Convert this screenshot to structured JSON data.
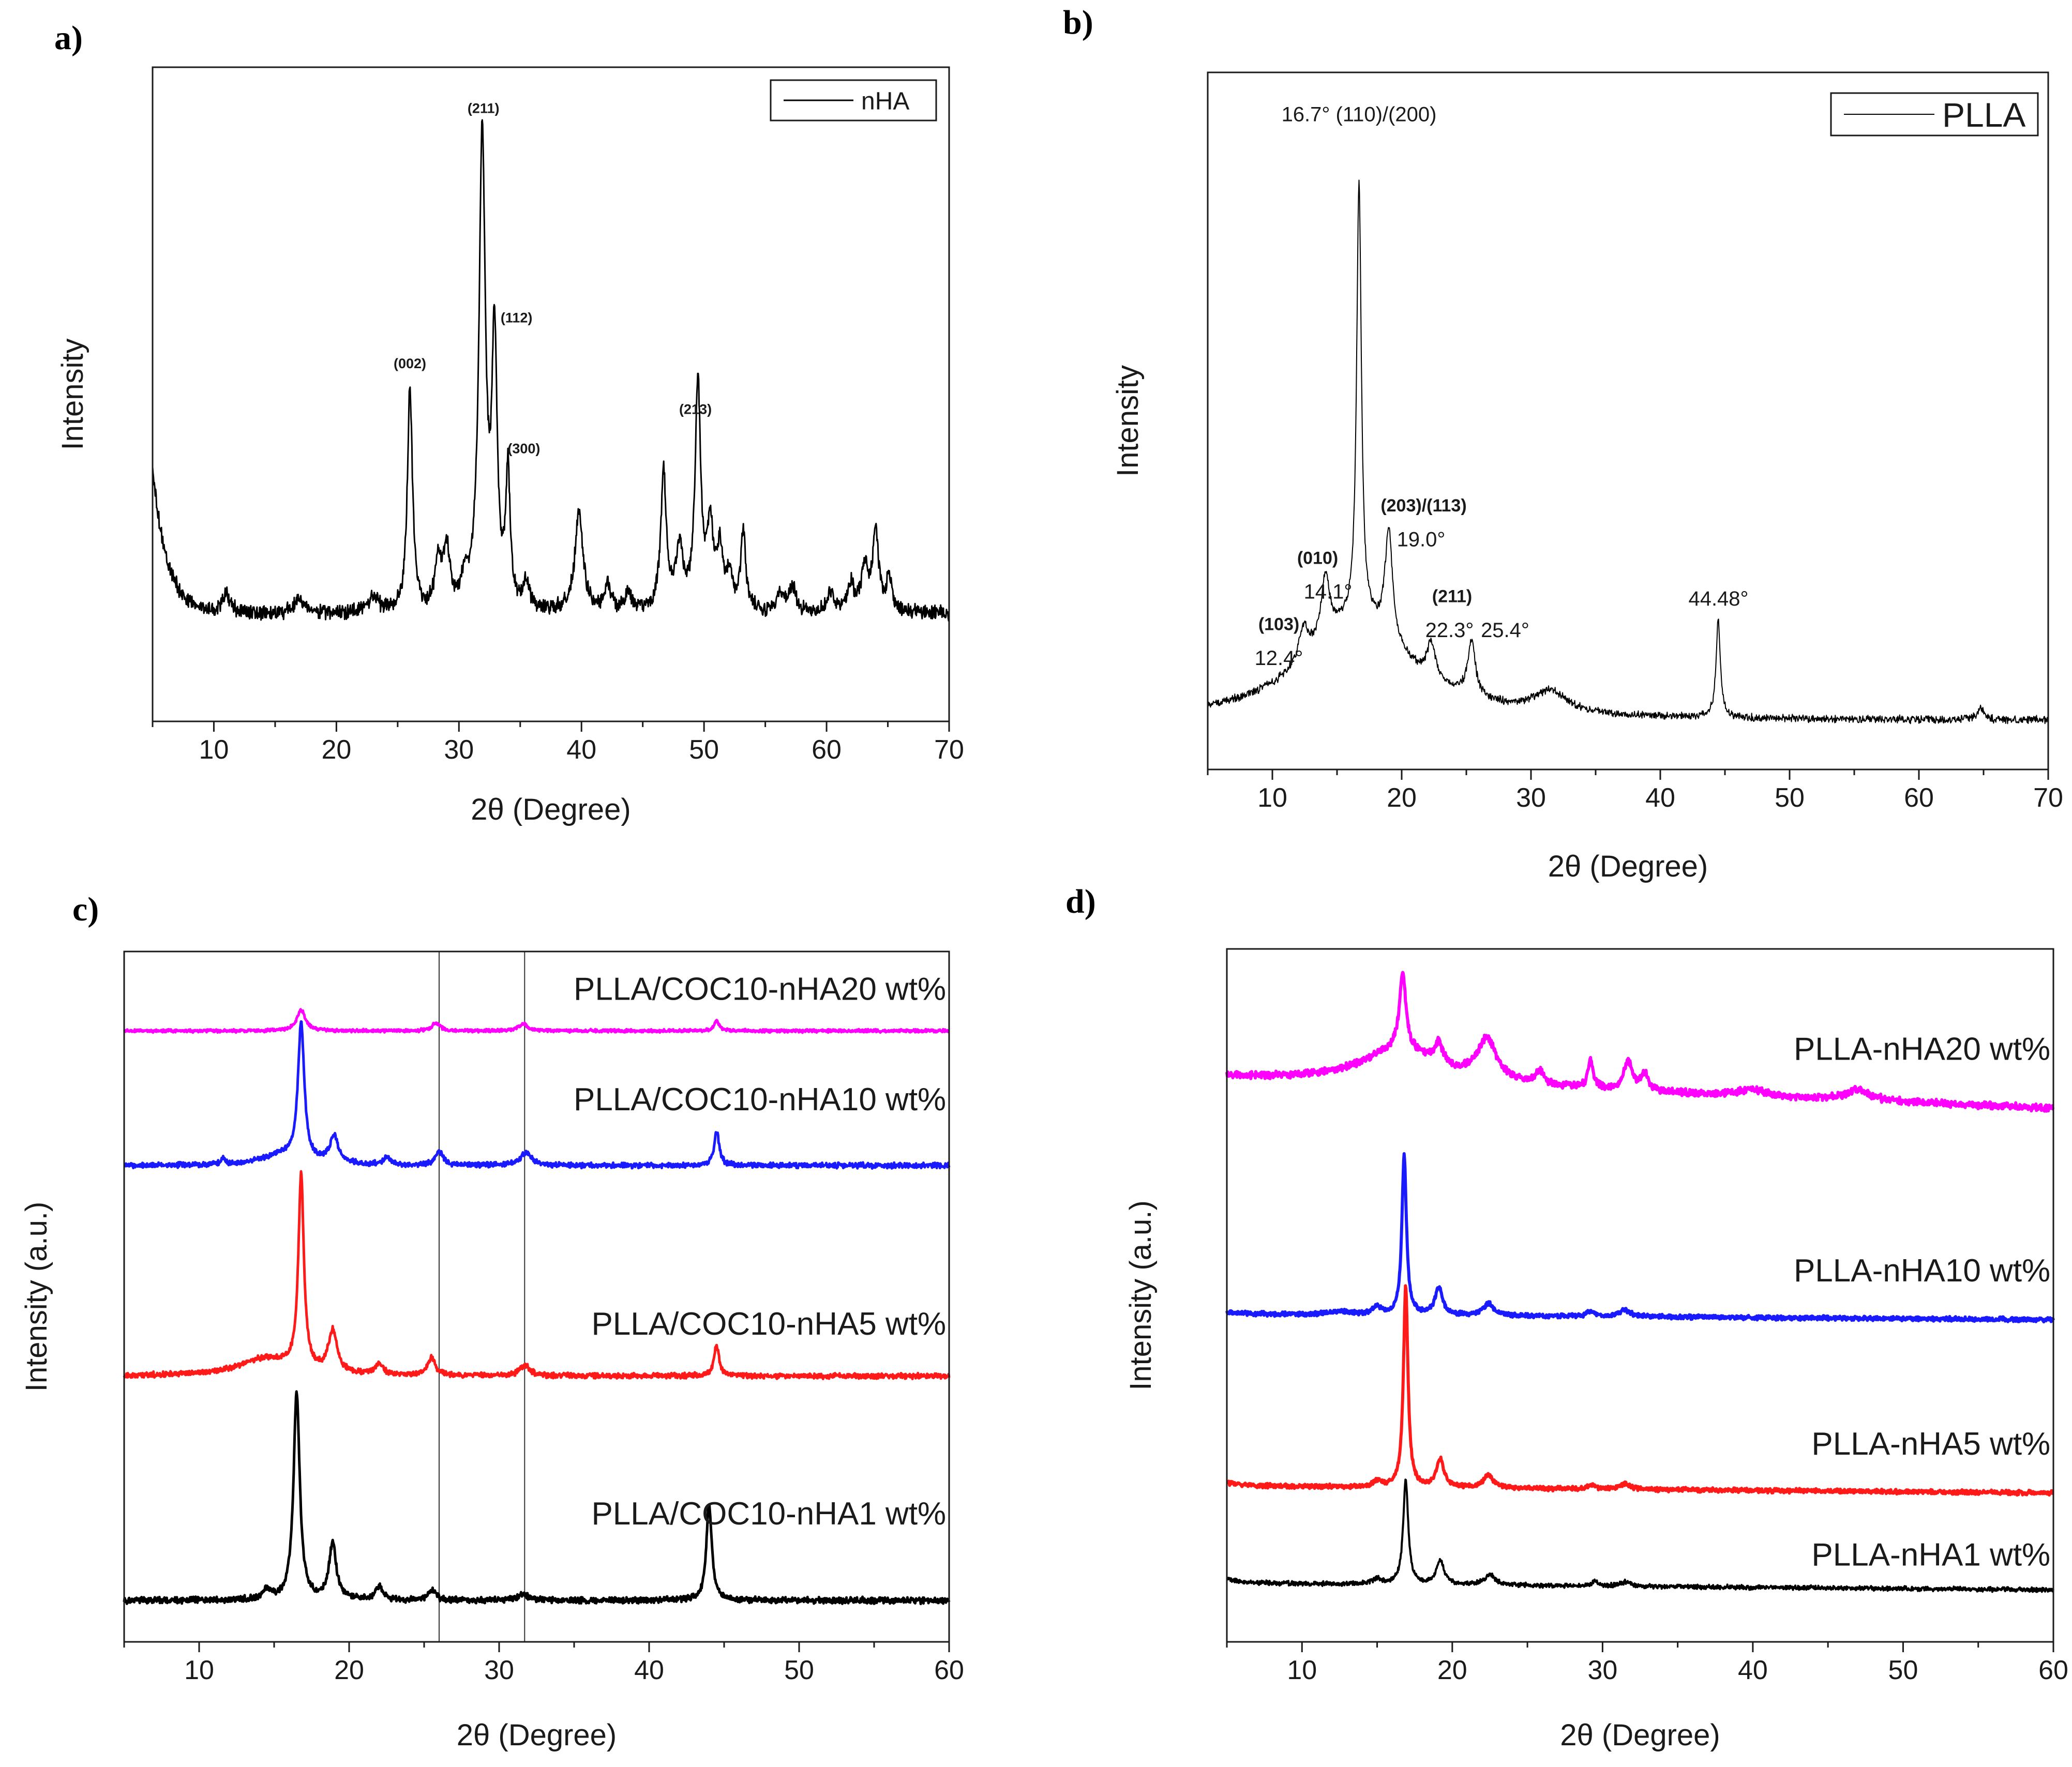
{
  "chart_data": [
    {
      "panel_label": "a)",
      "type": "line",
      "xlabel": "2θ (Degree)",
      "ylabel": "Intensity",
      "xlim": [
        5,
        70
      ],
      "ylim": [
        0,
        100
      ],
      "xticks": [
        10,
        20,
        30,
        40,
        50,
        60,
        70
      ],
      "legend": {
        "position": "top-right",
        "entries": [
          "nHA"
        ]
      },
      "series": [
        {
          "name": "nHA",
          "color": "#000000",
          "stroke": 3,
          "baseline": 16.5,
          "noise": 0.9,
          "start": 22,
          "tail": 0,
          "peaks": [
            [
              11,
              3,
              0.4
            ],
            [
              17,
              2.5,
              0.4
            ],
            [
              23,
              2.5,
              0.4
            ],
            [
              26,
              34,
              0.25
            ],
            [
              28.3,
              7,
              0.3
            ],
            [
              29,
              9,
              0.3
            ],
            [
              30.5,
              4,
              0.3
            ],
            [
              31.9,
              72,
              0.32
            ],
            [
              32.9,
              40,
              0.25
            ],
            [
              34,
              20,
              0.22
            ],
            [
              35.5,
              4,
              0.3
            ],
            [
              39.8,
              15,
              0.4
            ],
            [
              42.1,
              4,
              0.3
            ],
            [
              43.8,
              3,
              0.3
            ],
            [
              46.7,
              21,
              0.28
            ],
            [
              48,
              9,
              0.35
            ],
            [
              49.5,
              34,
              0.28
            ],
            [
              50.5,
              12,
              0.3
            ],
            [
              51.3,
              9,
              0.3
            ],
            [
              52.1,
              5,
              0.3
            ],
            [
              53.2,
              12,
              0.25
            ],
            [
              56.2,
              3,
              0.3
            ],
            [
              57.2,
              4,
              0.3
            ],
            [
              60.3,
              3,
              0.3
            ],
            [
              62,
              4,
              0.3
            ],
            [
              63.1,
              7,
              0.3
            ],
            [
              64,
              12,
              0.3
            ],
            [
              65.1,
              5,
              0.3
            ]
          ]
        }
      ],
      "annotations": [
        {
          "text": "(002)",
          "x": 26,
          "y": 54
        },
        {
          "text": "(211)",
          "x": 32,
          "y": 93
        },
        {
          "text": "(112)",
          "x": 34.7,
          "y": 61
        },
        {
          "text": "(300)",
          "x": 35.3,
          "y": 41
        },
        {
          "text": "(213)",
          "x": 49.3,
          "y": 47
        }
      ]
    },
    {
      "panel_label": "b)",
      "type": "line",
      "xlabel": "2θ (Degree)",
      "ylabel": "Intensity",
      "xlim": [
        5,
        70
      ],
      "ylim": [
        0,
        100
      ],
      "xticks": [
        10,
        20,
        30,
        40,
        50,
        60,
        70
      ],
      "legend": {
        "position": "top-right",
        "entries": [
          "PLLA"
        ]
      },
      "series": [
        {
          "name": "PLLA",
          "color": "#000000",
          "stroke": 2,
          "baseline": 7,
          "noise": 0.45,
          "start": 0,
          "tail": 0,
          "peaks": [
            [
              16.5,
              14,
              5
            ],
            [
              12.4,
              5,
              0.45
            ],
            [
              14.1,
              9,
              0.4
            ],
            [
              16.7,
              63,
              0.22
            ],
            [
              19.0,
              16,
              0.35
            ],
            [
              22.3,
              5,
              0.4
            ],
            [
              25.4,
              8,
              0.35
            ],
            [
              31.5,
              3,
              1.5
            ],
            [
              44.48,
              14,
              0.2
            ],
            [
              64.8,
              1.5,
              0.3
            ]
          ]
        }
      ],
      "annotations": [
        {
          "text": "16.7° (110)/(200)",
          "x": 16.7,
          "y": 93
        },
        {
          "text": "(203)/(113)",
          "x": 21.7,
          "y": 37
        },
        {
          "text": "19.0°",
          "x": 21.5,
          "y": 32
        },
        {
          "text": "(010)",
          "x": 13.5,
          "y": 29.5
        },
        {
          "text": "14.1°",
          "x": 14.3,
          "y": 24.5
        },
        {
          "text": "(211)",
          "x": 23.9,
          "y": 24
        },
        {
          "text": "22.3°",
          "x": 23.7,
          "y": 19
        },
        {
          "text": "25.4°",
          "x": 28,
          "y": 19
        },
        {
          "text": "(103)",
          "x": 10.5,
          "y": 20
        },
        {
          "text": "12.4°",
          "x": 10.5,
          "y": 15
        },
        {
          "text": "44.48°",
          "x": 44.5,
          "y": 23.5
        }
      ]
    },
    {
      "panel_label": "c)",
      "type": "line",
      "xlabel": "2θ (Degree)",
      "ylabel": "Intensity (a.u.)",
      "xlim": [
        5,
        60
      ],
      "ylim": [
        0,
        100
      ],
      "xticks": [
        10,
        20,
        30,
        40,
        50,
        60
      ],
      "reference_lines_x": [
        26,
        31.7
      ],
      "series": [
        {
          "name": "PLLA/COC10-nHA1 wt%",
          "color": "#000000",
          "stroke": 5,
          "baseline": 6,
          "noise": 0.35,
          "start": 0,
          "tail": 0,
          "peaks": [
            [
              14.5,
              1.5,
              0.3
            ],
            [
              16.5,
              30,
              0.25
            ],
            [
              18.9,
              8,
              0.3
            ],
            [
              22,
              2,
              0.3
            ],
            [
              25.5,
              1.5,
              0.3
            ],
            [
              31.6,
              1,
              0.4
            ],
            [
              44.0,
              14,
              0.22
            ]
          ]
        },
        {
          "name": "PLLA/COC10-nHA5 wt%",
          "color": "#ff1a1a",
          "stroke": 5,
          "baseline": 38.5,
          "noise": 0.3,
          "start": 0,
          "tail": 0,
          "peaks": [
            [
              14.5,
              2.5,
              2.2
            ],
            [
              16.8,
              28,
              0.22
            ],
            [
              18.9,
              6,
              0.35
            ],
            [
              22,
              1.5,
              0.3
            ],
            [
              25.5,
              2.5,
              0.3
            ],
            [
              31.7,
              1.5,
              0.4
            ],
            [
              44.5,
              4.5,
              0.2
            ]
          ]
        },
        {
          "name": "PLLA/COC10-nHA10 wt%",
          "color": "#1a1aff",
          "stroke": 5,
          "baseline": 69,
          "noise": 0.3,
          "start": 0,
          "tail": 0,
          "peaks": [
            [
              11.6,
              1,
              0.15
            ],
            [
              15.5,
              1.5,
              1.5
            ],
            [
              16.8,
              20,
              0.25
            ],
            [
              19,
              4,
              0.35
            ],
            [
              22.5,
              1,
              0.3
            ],
            [
              26,
              2,
              0.3
            ],
            [
              31.8,
              2,
              0.4
            ],
            [
              44.5,
              5,
              0.2
            ]
          ]
        },
        {
          "name": "PLLA/COC10-nHA20 wt%",
          "color": "#ff00ff",
          "stroke": 5,
          "baseline": 88.5,
          "noise": 0.18,
          "start": 0,
          "tail": 0,
          "peaks": [
            [
              16.8,
              3,
              0.35
            ],
            [
              25.8,
              1.2,
              0.3
            ],
            [
              31.6,
              1,
              0.4
            ],
            [
              44.5,
              1.5,
              0.2
            ]
          ]
        }
      ],
      "annotations": [
        {
          "text": "PLLA/COC10-nHA1 wt%",
          "x": 59.8,
          "y": 17
        },
        {
          "text": "PLLA/COC10-nHA5 wt%",
          "x": 59.8,
          "y": 44.5
        },
        {
          "text": "PLLA/COC10-nHA10 wt%",
          "x": 59.8,
          "y": 77
        },
        {
          "text": "PLLA/COC10-nHA20 wt%",
          "x": 59.8,
          "y": 93
        }
      ]
    },
    {
      "panel_label": "d)",
      "type": "line",
      "xlabel": "2θ (Degree)",
      "ylabel": "Intensity (a.u.)",
      "xlim": [
        5,
        60
      ],
      "ylim": [
        0,
        100
      ],
      "xticks": [
        10,
        20,
        30,
        40,
        50,
        60
      ],
      "series": [
        {
          "name": "PLLA-nHA1 wt%",
          "color": "#000000",
          "stroke": 4,
          "baseline": 7.5,
          "noise": 0.25,
          "start": 0.5,
          "tail": 1,
          "peaks": [
            [
              15,
              0.8,
              0.3
            ],
            [
              16.9,
              15,
              0.2
            ],
            [
              19.2,
              3.5,
              0.3
            ],
            [
              22.5,
              1.5,
              0.4
            ],
            [
              29.5,
              0.6,
              0.3
            ],
            [
              31.5,
              0.6,
              0.4
            ]
          ]
        },
        {
          "name": "PLLA-nHA5 wt%",
          "color": "#ff1a1a",
          "stroke": 6,
          "baseline": 21.5,
          "noise": 0.25,
          "start": 0.5,
          "tail": 1,
          "peaks": [
            [
              15,
              0.8,
              0.3
            ],
            [
              16.9,
              29,
              0.18
            ],
            [
              19.2,
              4,
              0.3
            ],
            [
              22.4,
              1.8,
              0.4
            ],
            [
              29.3,
              0.6,
              0.3
            ],
            [
              31.5,
              0.8,
              0.4
            ]
          ]
        },
        {
          "name": "PLLA-nHA10 wt%",
          "color": "#1a1aff",
          "stroke": 6,
          "baseline": 46.5,
          "noise": 0.25,
          "start": 0.3,
          "tail": 0.8,
          "peaks": [
            [
              12.5,
              0.5,
              1
            ],
            [
              15,
              1.2,
              0.3
            ],
            [
              16.8,
              23,
              0.18
            ],
            [
              19.1,
              4,
              0.3
            ],
            [
              22.4,
              1.8,
              0.4
            ],
            [
              29.2,
              0.8,
              0.3
            ],
            [
              31.5,
              1,
              0.4
            ]
          ]
        },
        {
          "name": "PLLA-nHA20 wt%",
          "color": "#ff00ff",
          "stroke": 6,
          "baseline": 77,
          "noise": 0.4,
          "start": 0,
          "tail": 4.5,
          "peaks": [
            [
              16.5,
              5,
              3
            ],
            [
              16.7,
              11,
              0.25
            ],
            [
              19.1,
              3,
              0.35
            ],
            [
              22.3,
              6,
              0.8
            ],
            [
              25.8,
              2,
              0.3
            ],
            [
              29.2,
              4,
              0.2
            ],
            [
              31.7,
              4,
              0.35
            ],
            [
              32.8,
              2.5,
              0.3
            ],
            [
              40,
              1,
              1
            ],
            [
              47,
              1.5,
              1
            ]
          ]
        }
      ],
      "annotations": [
        {
          "text": "PLLA-nHA1 wt%",
          "x": 59.8,
          "y": 11
        },
        {
          "text": "PLLA-nHA5 wt%",
          "x": 59.8,
          "y": 27
        },
        {
          "text": "PLLA-nHA10 wt%",
          "x": 59.8,
          "y": 52
        },
        {
          "text": "PLLA-nHA20 wt%",
          "x": 59.8,
          "y": 84
        }
      ]
    }
  ]
}
